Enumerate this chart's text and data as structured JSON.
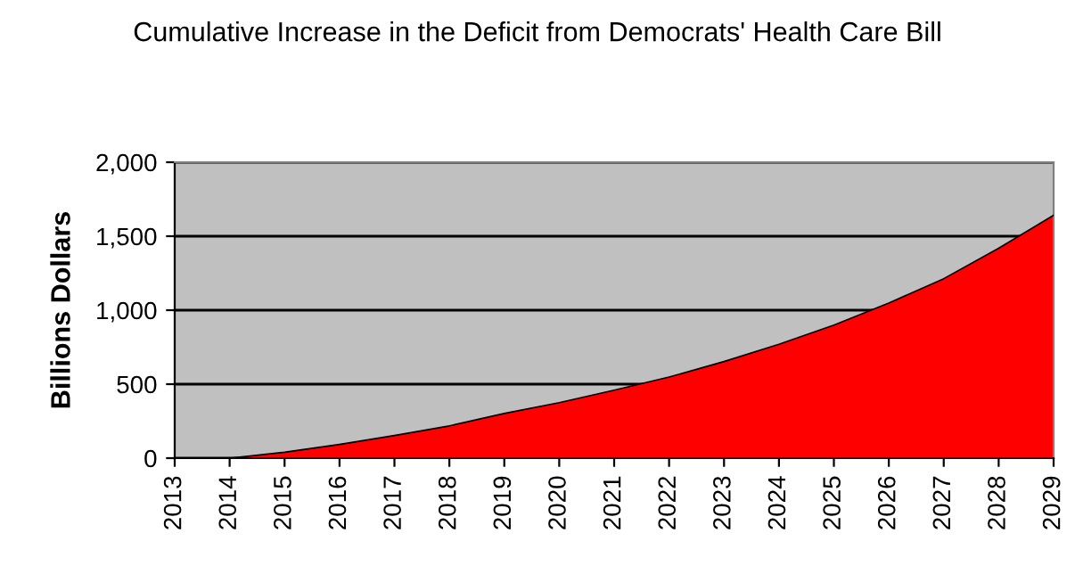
{
  "chart_data": {
    "type": "area",
    "title": "Cumulative Increase in the Deficit from Democrats' Health Care Bill",
    "ylabel": "Billions Dollars",
    "categories": [
      "2013",
      "2014",
      "2015",
      "2016",
      "2017",
      "2018",
      "2019",
      "2020",
      "2021",
      "2022",
      "2023",
      "2024",
      "2025",
      "2026",
      "2027",
      "2028",
      "2029"
    ],
    "series": [
      {
        "color": "#ff0000",
        "values": [
          null,
          0,
          40,
          93,
          153,
          218,
          302,
          375,
          459,
          548,
          653,
          770,
          899,
          1048,
          1213,
          1419,
          1641
        ]
      }
    ],
    "ylim": [
      0,
      2000
    ],
    "yticks": [
      0,
      500,
      {
        "value": 1000,
        "label": "1,000"
      },
      {
        "value": 1500,
        "label": "1,500"
      },
      {
        "value": 2000,
        "label": "2,000"
      }
    ],
    "grid": "y",
    "legend": false
  }
}
